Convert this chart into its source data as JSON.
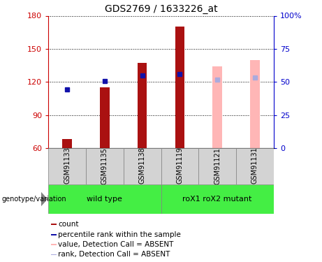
{
  "title": "GDS2769 / 1633226_at",
  "samples": [
    "GSM91133",
    "GSM91135",
    "GSM91138",
    "GSM91119",
    "GSM91121",
    "GSM91131"
  ],
  "count_values": [
    68,
    115,
    137,
    170,
    null,
    null
  ],
  "rank_values": [
    113,
    121,
    126,
    127,
    null,
    null
  ],
  "absent_count_values": [
    null,
    null,
    null,
    null,
    134,
    140
  ],
  "absent_rank_values": [
    null,
    null,
    null,
    null,
    122,
    124
  ],
  "ylim": [
    60,
    180
  ],
  "yticks": [
    60,
    90,
    120,
    150,
    180
  ],
  "y2lim": [
    0,
    100
  ],
  "y2ticks": [
    0,
    25,
    50,
    75,
    100
  ],
  "bar_width": 0.25,
  "rank_marker_size": 5,
  "count_color": "#AA1111",
  "rank_color": "#1111AA",
  "absent_count_color": "#FFB6B6",
  "absent_rank_color": "#AAAADD",
  "left_axis_color": "#CC0000",
  "right_axis_color": "#0000CC",
  "grid_color": "black",
  "sample_box_color": "#D3D3D3",
  "group_box_color": "#44EE44",
  "genotype_label": "genotype/variation",
  "wild_type_label": "wild type",
  "mutant_label": "roX1 roX2 mutant",
  "legend_items": [
    "count",
    "percentile rank within the sample",
    "value, Detection Call = ABSENT",
    "rank, Detection Call = ABSENT"
  ]
}
